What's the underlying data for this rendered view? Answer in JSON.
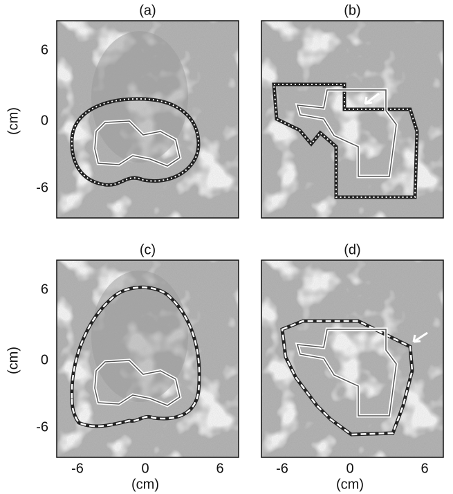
{
  "panels": [
    {
      "label": "(a)"
    },
    {
      "label": "(b)"
    },
    {
      "label": "(c)"
    },
    {
      "label": "(d)"
    }
  ],
  "y_axis": {
    "label": "(cm)",
    "ticks": [
      "6",
      "0",
      "-6"
    ]
  },
  "x_axis": {
    "label": "(cm)",
    "ticks": [
      "-6",
      "0",
      "6"
    ]
  }
}
